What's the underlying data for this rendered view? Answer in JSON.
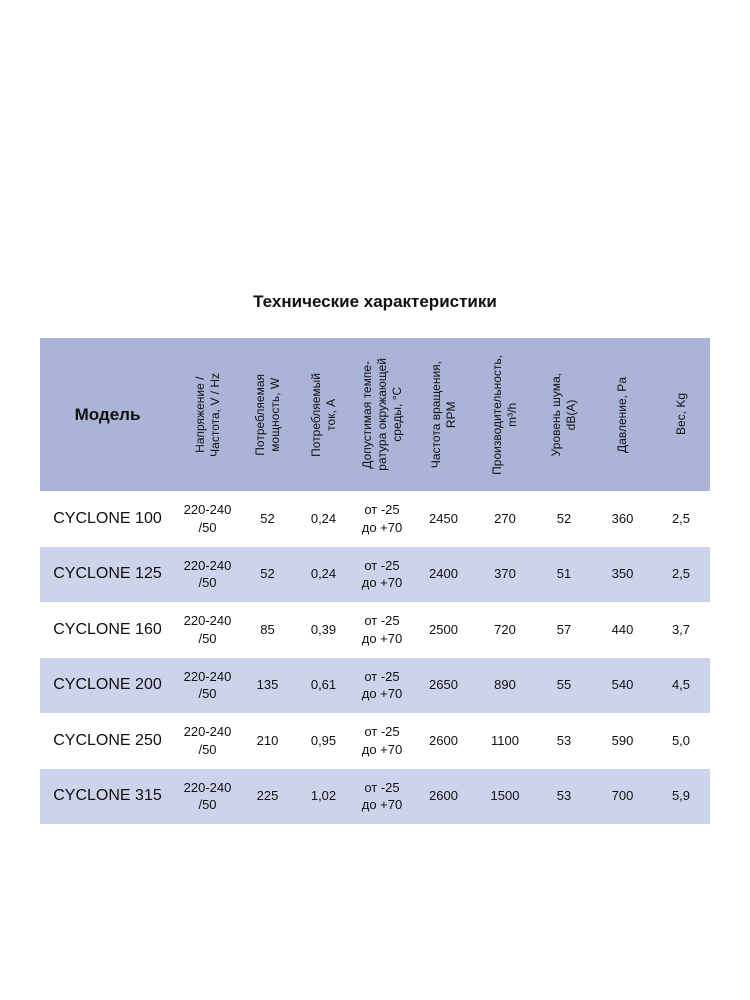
{
  "title": "Технические характеристики",
  "headers": [
    "Модель",
    "Напряжение /\nЧастота, V / Hz",
    "Потребляемая\nмощность, W",
    "Потребляемый\nток, А",
    "Допустимая темпе-\nратура окружающей\nсреды, °С",
    "Частота вращения,\nRPM",
    "Производительность,\nm³/h",
    "Уровень шума,\ndB(A)",
    "Давление, Pa",
    "Вес, Kg"
  ],
  "rows": [
    [
      "CYCLONE 100",
      "220-240\n/50",
      "52",
      "0,24",
      "от -25\nдо +70",
      "2450",
      "270",
      "52",
      "360",
      "2,5"
    ],
    [
      "CYCLONE 125",
      "220-240\n/50",
      "52",
      "0,24",
      "от -25\nдо +70",
      "2400",
      "370",
      "51",
      "350",
      "2,5"
    ],
    [
      "CYCLONE 160",
      "220-240\n/50",
      "85",
      "0,39",
      "от -25\nдо +70",
      "2500",
      "720",
      "57",
      "440",
      "3,7"
    ],
    [
      "CYCLONE 200",
      "220-240\n/50",
      "135",
      "0,61",
      "от -25\nдо +70",
      "2650",
      "890",
      "55",
      "540",
      "4,5"
    ],
    [
      "CYCLONE 250",
      "220-240\n/50",
      "210",
      "0,95",
      "от -25\nдо +70",
      "2600",
      "1100",
      "53",
      "590",
      "5,0"
    ],
    [
      "CYCLONE 315",
      "220-240\n/50",
      "225",
      "1,02",
      "от -25\nдо +70",
      "2600",
      "1500",
      "53",
      "700",
      "5,9"
    ]
  ],
  "colors": {
    "header": "#a9b4d6",
    "alt_row": "#cdd3ea"
  }
}
